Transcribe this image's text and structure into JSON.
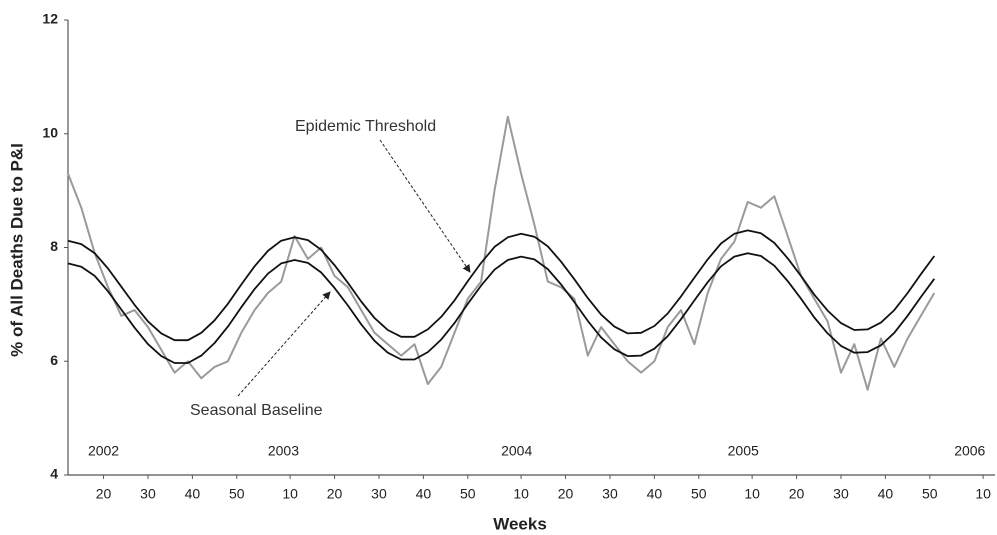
{
  "chart_data": {
    "type": "line",
    "x_label": "Weeks",
    "y_label": "% of All Deaths Due to P&I",
    "annotations": [
      "Epidemic Threshold",
      "Seasonal Baseline"
    ],
    "xlim": [
      12,
      220
    ],
    "ylim": [
      4,
      12
    ],
    "yticks": [
      4,
      6,
      8,
      10,
      12
    ],
    "xticks": [
      20,
      30,
      40,
      50,
      {
        "value": 62,
        "label": "10"
      },
      {
        "value": 72,
        "label": "20"
      },
      {
        "value": 82,
        "label": "30"
      },
      {
        "value": 92,
        "label": "40"
      },
      {
        "value": 102,
        "label": "50"
      },
      {
        "value": 114,
        "label": "10"
      },
      {
        "value": 124,
        "label": "20"
      },
      {
        "value": 134,
        "label": "30"
      },
      {
        "value": 144,
        "label": "40"
      },
      {
        "value": 154,
        "label": "50"
      },
      {
        "value": 166,
        "label": "10"
      },
      {
        "value": 176,
        "label": "20"
      },
      {
        "value": 186,
        "label": "30"
      },
      {
        "value": 196,
        "label": "40"
      },
      {
        "value": 206,
        "label": "50"
      },
      {
        "value": 218,
        "label": "10"
      }
    ],
    "year_labels": [
      {
        "value": 20,
        "label": "2002"
      },
      {
        "value": 60.5,
        "label": "2003"
      },
      {
        "value": 113,
        "label": "2004"
      },
      {
        "value": 164,
        "label": "2005"
      },
      {
        "value": 215,
        "label": "2006"
      }
    ],
    "grid": false,
    "x": [
      12,
      15,
      18,
      21,
      24,
      27,
      30,
      33,
      36,
      39,
      42,
      45,
      48,
      51,
      54,
      57,
      60,
      63,
      66,
      69,
      72,
      75,
      78,
      81,
      84,
      87,
      90,
      93,
      96,
      99,
      102,
      105,
      108,
      111,
      114,
      117,
      120,
      123,
      126,
      129,
      132,
      135,
      138,
      141,
      144,
      147,
      150,
      153,
      156,
      159,
      162,
      165,
      168,
      171,
      174,
      177,
      180,
      183,
      186,
      189,
      192,
      195,
      198,
      201,
      204,
      207
    ],
    "series": [
      {
        "color": "#9a9a9a",
        "values": [
          9.3,
          8.7,
          7.9,
          7.3,
          6.8,
          6.9,
          6.6,
          6.2,
          5.8,
          6.0,
          5.7,
          5.9,
          6.0,
          6.5,
          6.9,
          7.2,
          7.4,
          8.2,
          7.8,
          8.0,
          7.5,
          7.3,
          6.9,
          6.5,
          6.3,
          6.1,
          6.3,
          5.6,
          5.9,
          6.5,
          7.1,
          7.4,
          9.0,
          10.3,
          9.3,
          8.4,
          7.4,
          7.3,
          7.1,
          6.1,
          6.6,
          6.3,
          6.0,
          5.8,
          6.0,
          6.6,
          6.9,
          6.3,
          7.2,
          7.8,
          8.1,
          8.8,
          8.7,
          8.9,
          8.2,
          7.5,
          7.1,
          6.7,
          5.8,
          6.3,
          5.5,
          6.4,
          5.9,
          6.4,
          6.8,
          7.2
        ]
      },
      {
        "color": "#111111",
        "values": [
          7.72,
          7.66,
          7.5,
          7.23,
          6.91,
          6.59,
          6.3,
          6.09,
          5.97,
          5.97,
          6.1,
          6.32,
          6.61,
          6.95,
          7.27,
          7.54,
          7.72,
          7.78,
          7.73,
          7.56,
          7.29,
          6.98,
          6.65,
          6.36,
          6.15,
          6.03,
          6.03,
          6.16,
          6.38,
          6.67,
          7.01,
          7.33,
          7.61,
          7.78,
          7.84,
          7.79,
          7.62,
          7.35,
          7.04,
          6.71,
          6.42,
          6.21,
          6.09,
          6.1,
          6.22,
          6.44,
          6.74,
          7.07,
          7.39,
          7.67,
          7.84,
          7.9,
          7.85,
          7.68,
          7.41,
          7.1,
          6.77,
          6.49,
          6.27,
          6.15,
          6.16,
          6.28,
          6.5,
          6.8,
          7.13,
          7.45
        ]
      },
      {
        "color": "#111111",
        "values": [
          8.12,
          8.06,
          7.9,
          7.63,
          7.31,
          6.99,
          6.7,
          6.49,
          6.37,
          6.37,
          6.5,
          6.72,
          7.01,
          7.35,
          7.67,
          7.94,
          8.12,
          8.18,
          8.13,
          7.96,
          7.69,
          7.38,
          7.05,
          6.76,
          6.55,
          6.43,
          6.43,
          6.56,
          6.78,
          7.07,
          7.41,
          7.73,
          8.01,
          8.18,
          8.24,
          8.19,
          8.02,
          7.75,
          7.44,
          7.11,
          6.82,
          6.61,
          6.49,
          6.5,
          6.62,
          6.84,
          7.14,
          7.47,
          7.79,
          8.07,
          8.24,
          8.3,
          8.25,
          8.08,
          7.81,
          7.5,
          7.17,
          6.89,
          6.67,
          6.55,
          6.56,
          6.68,
          6.9,
          7.2,
          7.53,
          7.85
        ]
      }
    ]
  }
}
